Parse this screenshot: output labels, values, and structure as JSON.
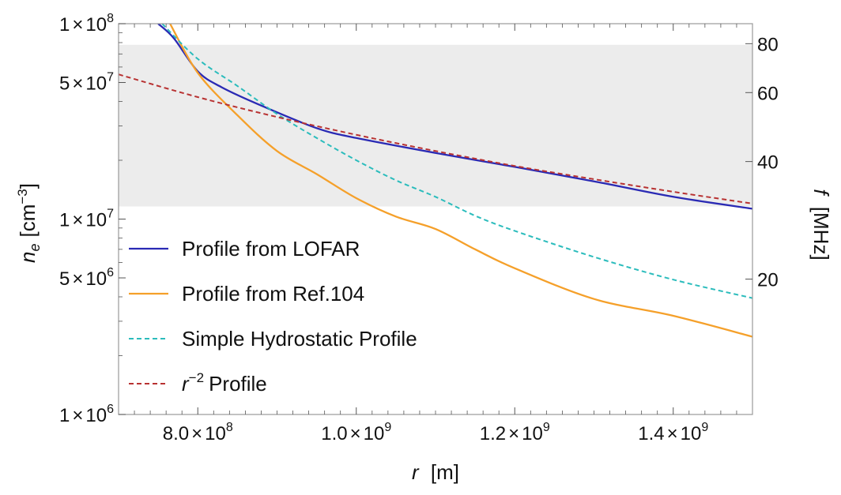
{
  "chart_data": {
    "type": "line",
    "title": "",
    "x_axis": {
      "label_var": "r",
      "label_unit": "[m]",
      "range": [
        700000000,
        1500000000
      ],
      "scale": "linear",
      "ticks": [
        {
          "value": 800000000,
          "mant": "8.0",
          "exp": "8"
        },
        {
          "value": 1000000000,
          "mant": "1.0",
          "exp": "9"
        },
        {
          "value": 1200000000,
          "mant": "1.2",
          "exp": "9"
        },
        {
          "value": 1400000000,
          "mant": "1.4",
          "exp": "9"
        }
      ]
    },
    "y_axis": {
      "label_var": "n",
      "label_sub": "e",
      "label_unit_pre": "[cm",
      "label_unit_exp": "−3",
      "label_unit_post": "]",
      "range": [
        1000000,
        100000000
      ],
      "scale": "log",
      "ticks": [
        {
          "value": 100000000,
          "mant": "1",
          "exp": "8"
        },
        {
          "value": 50000000,
          "mant": "5",
          "exp": "7"
        },
        {
          "value": 10000000,
          "mant": "1",
          "exp": "7"
        },
        {
          "value": 5000000,
          "mant": "5",
          "exp": "6"
        },
        {
          "value": 1000000,
          "mant": "1",
          "exp": "6"
        }
      ]
    },
    "y2_axis": {
      "label_var": "f",
      "label_unit": "[MHz]",
      "ticks": [
        {
          "label": "80",
          "ne": 79000000
        },
        {
          "label": "60",
          "ne": 44400000
        },
        {
          "label": "40",
          "ne": 19700000
        },
        {
          "label": "20",
          "ne": 4930000
        }
      ]
    },
    "shaded_band": {
      "ne_min": 11600000,
      "ne_max": 78000000,
      "color": "#ececec"
    },
    "grid": false,
    "legend": {
      "position": "bottom-left"
    },
    "series": [
      {
        "name": "Profile from LOFAR",
        "color": "#2a2ab4",
        "dash": "solid",
        "x": [
          750000000,
          770000000,
          800000000,
          830000000,
          880000000,
          950000000,
          1000000000,
          1100000000,
          1200000000,
          1300000000,
          1400000000,
          1500000000
        ],
        "y": [
          100000000,
          84000000,
          57000000,
          47300000,
          38100000,
          29200000,
          26000000,
          21800000,
          18500000,
          15600000,
          13000000,
          11300000
        ]
      },
      {
        "name": "Profile from Ref.104",
        "color": "#f5a02a",
        "dash": "solid",
        "x": [
          765000000,
          800000000,
          850000000,
          900000000,
          950000000,
          1000000000,
          1050000000,
          1100000000,
          1150000000,
          1200000000,
          1300000000,
          1400000000,
          1500000000
        ],
        "y": [
          100000000,
          56000000,
          34000000,
          22300000,
          17000000,
          12800000,
          10300000,
          8900000,
          7000000,
          5600000,
          3900000,
          3200000,
          2500000
        ]
      },
      {
        "name": "Simple Hydrostatic Profile",
        "color": "#2bbcbc",
        "dash": "dashed",
        "x": [
          755000000,
          800000000,
          850000000,
          900000000,
          950000000,
          1000000000,
          1050000000,
          1100000000,
          1150000000,
          1200000000,
          1300000000,
          1400000000,
          1500000000
        ],
        "y": [
          100000000,
          66000000,
          48000000,
          34500000,
          26000000,
          20000000,
          15800000,
          13000000,
          10400000,
          8700000,
          6400000,
          4900000,
          3940000
        ]
      },
      {
        "name": "Profile",
        "name_prefix": "r",
        "name_exp": "−2",
        "color": "#b83232",
        "dash": "dashed",
        "x": [
          700000000,
          800000000,
          900000000,
          1000000000,
          1100000000,
          1200000000,
          1300000000,
          1400000000,
          1500000000
        ],
        "y": [
          55000000,
          42100000,
          33300000,
          27000000,
          22300000,
          18700000,
          16000000,
          13800000,
          12000000
        ]
      }
    ]
  }
}
